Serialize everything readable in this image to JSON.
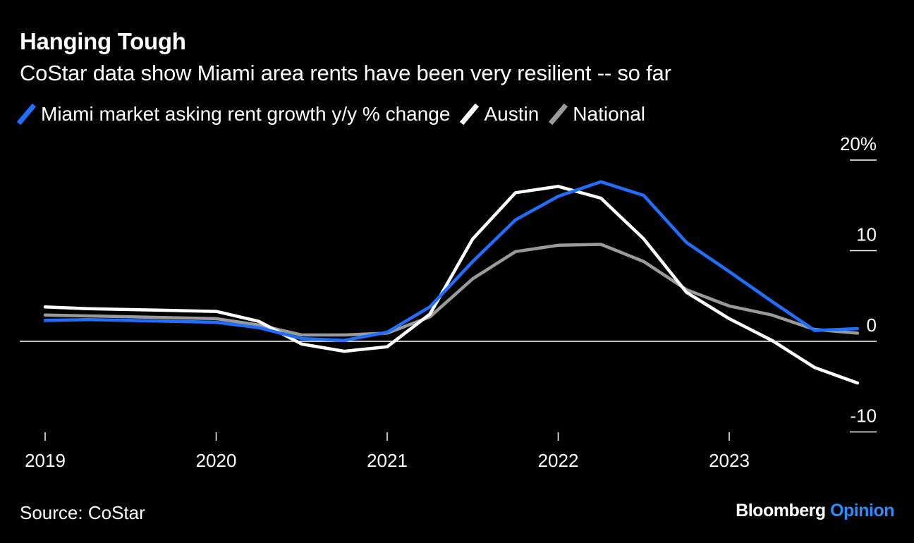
{
  "title": "Hanging Tough",
  "subtitle": "CoStar data show Miami area rents have been very resilient -- so far",
  "source": "Source: CoStar",
  "brand": {
    "name": "Bloomberg",
    "suffix": "Opinion"
  },
  "colors": {
    "miami": "#1f6fff",
    "austin": "#ffffff",
    "national": "#9a9a9a",
    "brand_accent": "#2b8cff"
  },
  "chart_data": {
    "type": "line",
    "ylim": [
      -10,
      20
    ],
    "yticks": [
      {
        "value": 20,
        "label": "20%"
      },
      {
        "value": 10,
        "label": "10"
      },
      {
        "value": 0,
        "label": "0"
      },
      {
        "value": -10,
        "label": "-10"
      }
    ],
    "xticks": [
      {
        "value": 2019.0,
        "label": "2019"
      },
      {
        "value": 2020.0,
        "label": "2020"
      },
      {
        "value": 2021.0,
        "label": "2021"
      },
      {
        "value": 2022.0,
        "label": "2022"
      },
      {
        "value": 2023.0,
        "label": "2023"
      }
    ],
    "x": [
      2019.0,
      2019.25,
      2019.5,
      2019.75,
      2020.0,
      2020.25,
      2020.5,
      2020.75,
      2021.0,
      2021.25,
      2021.5,
      2021.75,
      2022.0,
      2022.25,
      2022.5,
      2022.75,
      2023.0,
      2023.25,
      2023.5,
      2023.75
    ],
    "series": [
      {
        "name": "National",
        "key": "national",
        "values": [
          2.9,
          2.8,
          2.7,
          2.6,
          2.5,
          1.8,
          0.7,
          0.7,
          0.9,
          2.7,
          6.9,
          9.9,
          10.6,
          10.7,
          8.8,
          5.7,
          3.9,
          2.9,
          1.3,
          0.9
        ]
      },
      {
        "name": "Austin",
        "key": "austin",
        "values": [
          3.8,
          3.6,
          3.5,
          3.4,
          3.3,
          2.2,
          -0.3,
          -1.1,
          -0.6,
          3.0,
          11.3,
          16.4,
          17.1,
          15.8,
          11.3,
          5.4,
          2.5,
          0.1,
          -2.9,
          -4.6
        ]
      },
      {
        "name": "Miami market asking rent growth y/y % change",
        "key": "miami",
        "values": [
          2.3,
          2.4,
          2.3,
          2.2,
          2.1,
          1.5,
          0.3,
          0.1,
          1.0,
          3.8,
          8.8,
          13.4,
          16.0,
          17.6,
          16.1,
          10.9,
          7.7,
          4.4,
          1.2,
          1.4
        ]
      }
    ],
    "legend_order": [
      "miami",
      "austin",
      "national"
    ],
    "legend_position": "top-left",
    "grid": false
  }
}
